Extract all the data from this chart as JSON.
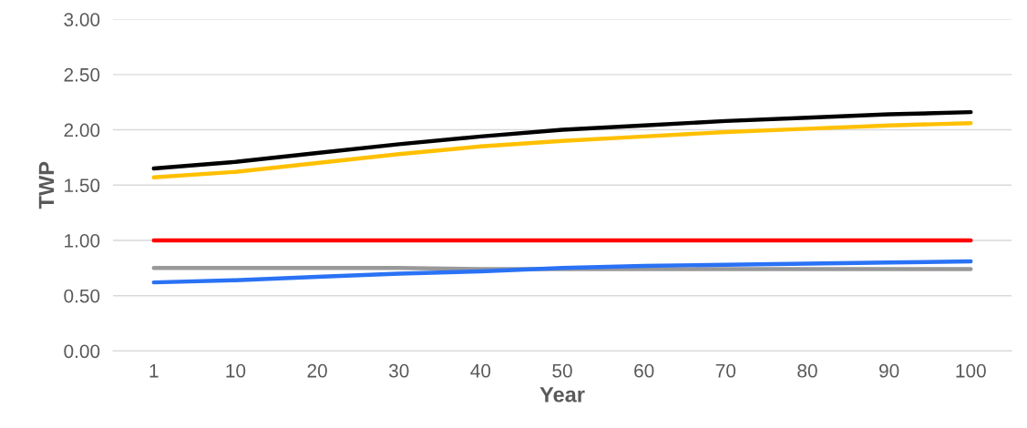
{
  "chart_data": {
    "type": "line",
    "xlabel": "Year",
    "ylabel": "TWP",
    "categories": [
      "1",
      "10",
      "20",
      "30",
      "40",
      "50",
      "60",
      "70",
      "80",
      "90",
      "100"
    ],
    "series": [
      {
        "color": "#000000",
        "values": [
          1.65,
          1.71,
          1.79,
          1.87,
          1.94,
          2.0,
          2.04,
          2.08,
          2.11,
          2.14,
          2.16
        ]
      },
      {
        "color": "#ffc000",
        "values": [
          1.57,
          1.62,
          1.7,
          1.78,
          1.85,
          1.9,
          1.94,
          1.98,
          2.01,
          2.04,
          2.06
        ]
      },
      {
        "color": "#ff0000",
        "values": [
          1.0,
          1.0,
          1.0,
          1.0,
          1.0,
          1.0,
          1.0,
          1.0,
          1.0,
          1.0,
          1.0
        ]
      },
      {
        "color": "#999999",
        "values": [
          0.75,
          0.75,
          0.75,
          0.75,
          0.74,
          0.74,
          0.74,
          0.74,
          0.74,
          0.74,
          0.74
        ]
      },
      {
        "color": "#2a72f5",
        "values": [
          0.62,
          0.64,
          0.67,
          0.7,
          0.72,
          0.75,
          0.77,
          0.78,
          0.79,
          0.8,
          0.81
        ]
      }
    ],
    "ylim": [
      0,
      3
    ],
    "yticks": [
      {
        "value": 0,
        "label": "0.00"
      },
      {
        "value": 0.5,
        "label": "0.50"
      },
      {
        "value": 1,
        "label": "1.00"
      },
      {
        "value": 1.5,
        "label": "1.50"
      },
      {
        "value": 2,
        "label": "2.00"
      },
      {
        "value": 2.5,
        "label": "2.50"
      },
      {
        "value": 3,
        "label": "3.00"
      }
    ],
    "grid": "y",
    "legend": false
  }
}
